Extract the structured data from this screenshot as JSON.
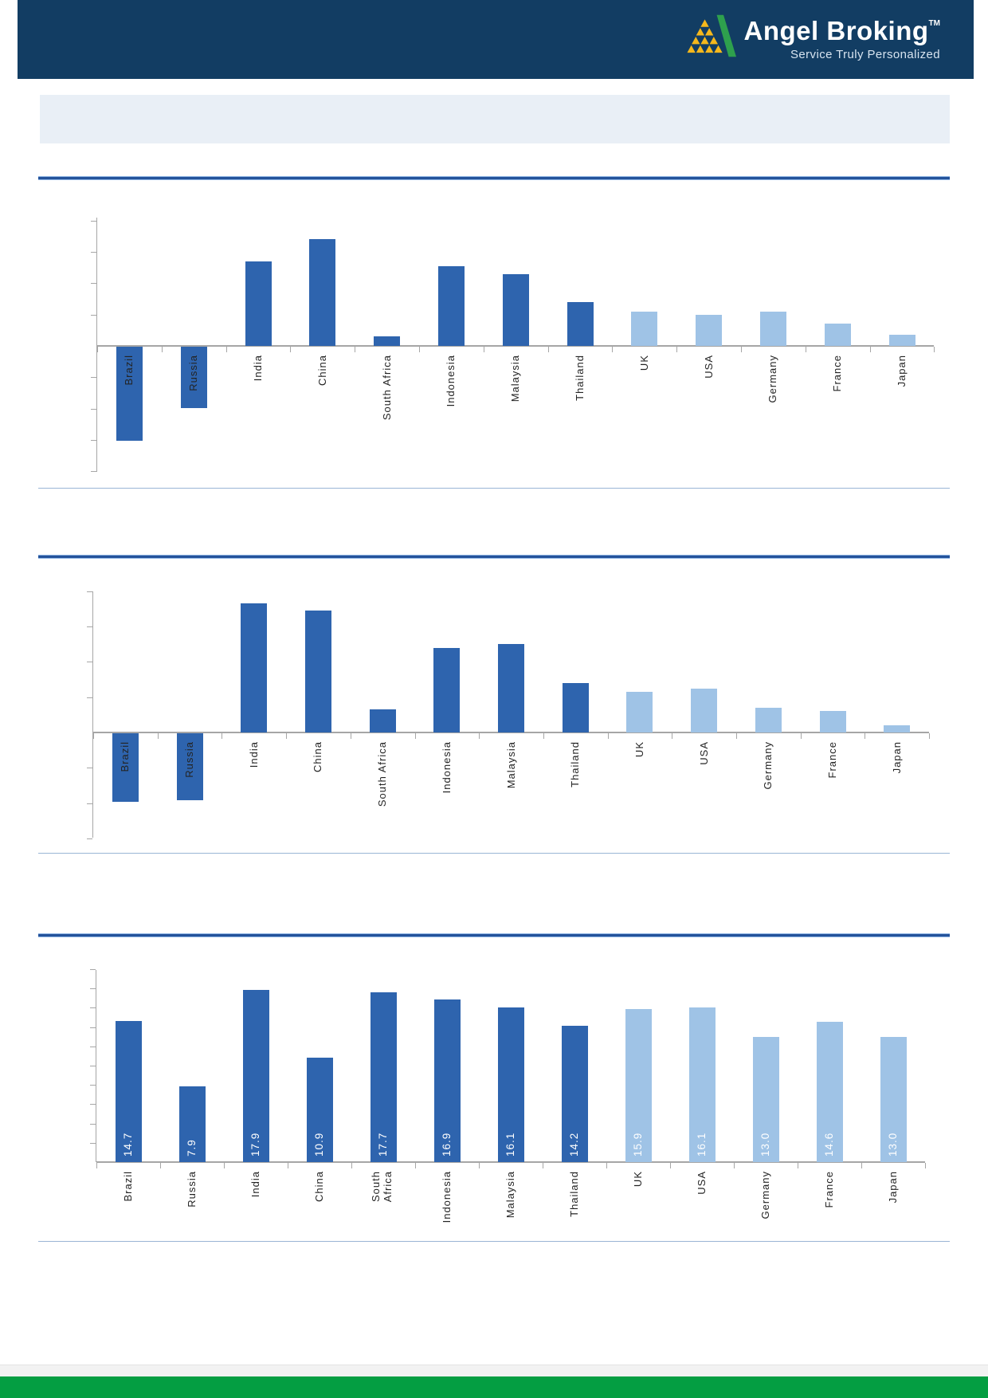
{
  "header": {
    "brand": "Angel Broking",
    "trademark": "TM",
    "tagline": "Service Truly Personalized",
    "logo_icon": "angel-pyramid-logo",
    "bg_color": "#123d63"
  },
  "banner": {
    "text": ""
  },
  "colors": {
    "dark_bar": "#2e64ae",
    "light_bar": "#9fc3e6",
    "axis": "#a6a6a6",
    "separator_thick": "#24539b",
    "separator_thin": "#9ab5d5",
    "bar_label_text": "#ffffff",
    "footer_green": "#049e42",
    "header_navy": "#123d63",
    "banner_gray": "#e9eff6"
  },
  "chart_data": [
    {
      "name": "chart-1",
      "type": "bar",
      "title": "",
      "categories": [
        "Brazil",
        "Russia",
        "India",
        "China",
        "South Africa",
        "Indonesia",
        "Malaysia",
        "Thailand",
        "UK",
        "USA",
        "Germany",
        "France",
        "Japan"
      ],
      "values": [
        -3.0,
        -1.95,
        2.7,
        3.4,
        0.3,
        2.55,
        2.3,
        1.4,
        1.1,
        1.0,
        1.1,
        0.7,
        0.35
      ],
      "values_estimated_in_gridline_units": true,
      "bar_palette": [
        "dark",
        "dark",
        "dark",
        "dark",
        "dark",
        "dark",
        "dark",
        "dark",
        "light",
        "light",
        "light",
        "light",
        "light"
      ],
      "data_labels": false,
      "legend": false,
      "y_axis": {
        "labels_visible": false,
        "tick_interval": 1,
        "ticks_above_baseline": 4,
        "ticks_below_baseline": 4
      },
      "ylim": [
        -4,
        4.5
      ],
      "grid": false
    },
    {
      "name": "chart-2",
      "type": "bar",
      "title": "",
      "categories": [
        "Brazil",
        "Russia",
        "India",
        "China",
        "South Africa",
        "Indonesia",
        "Malaysia",
        "Thailand",
        "UK",
        "USA",
        "Germany",
        "France",
        "Japan"
      ],
      "values": [
        -1.95,
        -1.9,
        3.65,
        3.45,
        0.65,
        2.4,
        2.5,
        1.4,
        1.15,
        1.25,
        0.7,
        0.6,
        0.2
      ],
      "values_estimated_in_gridline_units": true,
      "bar_palette": [
        "dark",
        "dark",
        "dark",
        "dark",
        "dark",
        "dark",
        "dark",
        "dark",
        "light",
        "light",
        "light",
        "light",
        "light"
      ],
      "data_labels": false,
      "legend": false,
      "y_axis": {
        "labels_visible": false,
        "tick_interval": 1,
        "ticks_above_baseline": 4,
        "ticks_below_baseline": 3
      },
      "ylim": [
        -3,
        4.5
      ],
      "grid": false
    },
    {
      "name": "chart-3",
      "type": "bar",
      "title": "",
      "categories": [
        "Brazil",
        "Russia",
        "India",
        "China",
        "South\nAfrica",
        "Indonesia",
        "Malaysia",
        "Thailand",
        "UK",
        "USA",
        "Germany",
        "France",
        "Japan"
      ],
      "values": [
        14.7,
        7.9,
        17.9,
        10.9,
        17.7,
        16.9,
        16.1,
        14.2,
        15.9,
        16.1,
        13.0,
        14.6,
        13.0
      ],
      "bar_palette": [
        "dark",
        "dark",
        "dark",
        "dark",
        "dark",
        "dark",
        "dark",
        "dark",
        "light",
        "light",
        "light",
        "light",
        "light"
      ],
      "data_labels": true,
      "data_label_values": [
        "14.7",
        "7.9",
        "17.9",
        "10.9",
        "17.7",
        "16.9",
        "16.1",
        "14.2",
        "15.9",
        "16.1",
        "13.0",
        "14.6",
        "13.0"
      ],
      "data_label_color": "#ffffff",
      "legend": false,
      "y_axis": {
        "labels_visible": false,
        "tick_interval": 2,
        "ticks_above_baseline": 10,
        "ticks_below_baseline": 0
      },
      "ylim": [
        0,
        20
      ],
      "grid": false
    }
  ]
}
